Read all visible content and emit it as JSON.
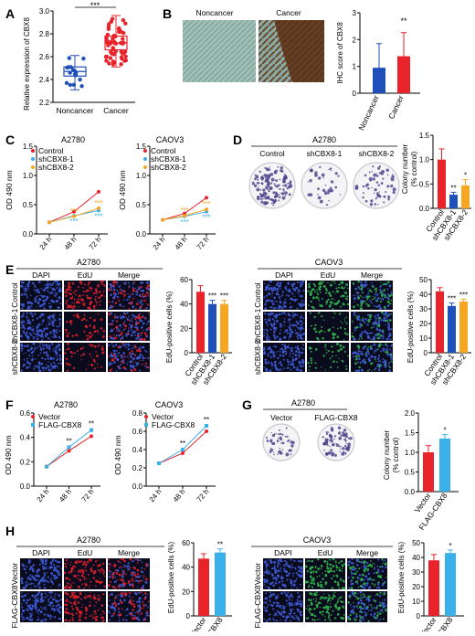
{
  "panel_labels": {
    "A": "A",
    "B": "B",
    "C": "C",
    "D": "D",
    "E": "E",
    "F": "F",
    "G": "G",
    "H": "H"
  },
  "panel_A": {
    "ylabel": "Relative expression of CBX8",
    "yticks": [
      "2.2",
      "2.4",
      "2.6",
      "2.8",
      "3.0"
    ],
    "groups": [
      "Noncancer",
      "Cancer"
    ],
    "sig": "***",
    "colors": {
      "noncancer": "#1f4fb8",
      "cancer": "#e8232a"
    }
  },
  "panel_B": {
    "img_labels": [
      "Noncancer",
      "Cancer"
    ],
    "ylabel": "IHC score of CBX8",
    "yticks": [
      "0",
      "1",
      "2",
      "3"
    ],
    "groups": [
      "Noncancer",
      "Cancer"
    ],
    "sig": "**"
  },
  "panel_C": {
    "title1": "A2780",
    "title2": "CAOV3",
    "ylabel": "OD 490 nm",
    "legend": [
      "Control",
      "shCBX8-1",
      "shCBX8-2"
    ],
    "xticks": [
      "24 h",
      "48 h",
      "72 h"
    ],
    "yticks1": [
      "0.0",
      "0.5",
      "1.0",
      "1.5"
    ],
    "yticks2": [
      "0.0",
      "0.5",
      "1.0",
      "1.5"
    ],
    "sig": "***"
  },
  "panel_D": {
    "title": "A2780",
    "img_labels": [
      "Control",
      "shCBX8-1",
      "shCBX8-2"
    ],
    "ylabel1": "Colony number",
    "ylabel2": "(% control)",
    "yticks": [
      "0.0",
      "0.5",
      "1.0",
      "1.5"
    ],
    "groups": [
      "Control",
      "shCBX8-1",
      "shCBX8-2"
    ],
    "sig": [
      "",
      "**",
      "*"
    ]
  },
  "panel_E": {
    "left": {
      "title": "A2780",
      "cols": [
        "DAPI",
        "EdU",
        "Merge"
      ],
      "rows": [
        "Control",
        "shCBX8-1",
        "shCBX8-2"
      ],
      "ylabel": "EdU-positive cells (%)",
      "yticks": [
        "0",
        "20",
        "40",
        "60"
      ],
      "groups": [
        "Control",
        "shCBX8-1",
        "shCBX8-2"
      ],
      "sig": [
        "",
        "***",
        "***"
      ]
    },
    "right": {
      "title": "CAOV3",
      "cols": [
        "DAPI",
        "EdU",
        "Merge"
      ],
      "rows": [
        "Control",
        "shCBX8-1",
        "shCBX8-2"
      ],
      "ylabel": "EdU-positive cells (%)",
      "yticks": [
        "0",
        "10",
        "20",
        "30",
        "40",
        "50"
      ],
      "groups": [
        "Control",
        "shCBX8-1",
        "shCBX8-2"
      ],
      "sig": [
        "",
        "***",
        "***"
      ]
    }
  },
  "panel_F": {
    "title1": "A2780",
    "title2": "CAOV3",
    "ylabel": "OD 490 nm",
    "legend": [
      "Vector",
      "FLAG-CBX8"
    ],
    "xticks": [
      "24 h",
      "48 h",
      "72 h"
    ],
    "yticks1": [
      "0.0",
      "0.2",
      "0.4",
      "0.6"
    ],
    "yticks2": [
      "0.0",
      "0.2",
      "0.4",
      "0.6",
      "0.8"
    ],
    "sig": "**"
  },
  "panel_G": {
    "title": "A2780",
    "img_labels": [
      "Vector",
      "FLAG-CBX8"
    ],
    "ylabel1": "Colony number",
    "ylabel2": "(% control)",
    "yticks": [
      "0.0",
      "0.5",
      "1.0",
      "1.5",
      "2.0"
    ],
    "groups": [
      "Vector",
      "FLAG-CBX8"
    ],
    "sig": "*"
  },
  "panel_H": {
    "left": {
      "title": "A2780",
      "cols": [
        "DAPI",
        "EdU",
        "Merge"
      ],
      "rows": [
        "Vector",
        "FLAG-CBX8"
      ],
      "ylabel": "EdU-positive cells (%)",
      "yticks": [
        "0",
        "20",
        "40",
        "60"
      ],
      "groups": [
        "Vector",
        "FLAG-CBX8"
      ],
      "sig": "**"
    },
    "right": {
      "title": "CAOV3",
      "cols": [
        "DAPI",
        "EdU",
        "Merge"
      ],
      "rows": [
        "Vector",
        "FLAG-CBX8"
      ],
      "ylabel": "EdU-positive cells (%)",
      "yticks": [
        "0",
        "10",
        "20",
        "30",
        "40",
        "50"
      ],
      "groups": [
        "Vector",
        "FLAG-CBX8"
      ],
      "sig": "*"
    }
  },
  "chart_data": [
    {
      "type": "box",
      "title": "",
      "ylabel": "Relative expression of CBX8",
      "categories": [
        "Noncancer",
        "Cancer"
      ],
      "ylim": [
        2.2,
        3.0
      ],
      "series": [
        {
          "values": [
            2.47,
            2.72
          ]
        }
      ]
    },
    {
      "type": "bar",
      "ylabel": "IHC score of CBX8",
      "categories": [
        "Noncancer",
        "Cancer"
      ],
      "ylim": [
        0,
        3
      ],
      "values": [
        0.95,
        1.38
      ],
      "errors": [
        0.9,
        0.88
      ]
    },
    {
      "type": "line",
      "title": "A2780",
      "ylabel": "OD 490 nm",
      "x": [
        "24 h",
        "48 h",
        "72 h"
      ],
      "ylim": [
        0,
        1.5
      ],
      "series": [
        {
          "name": "Control",
          "values": [
            0.2,
            0.38,
            0.72
          ]
        },
        {
          "name": "shCBX8-1",
          "values": [
            0.2,
            0.31,
            0.4
          ]
        },
        {
          "name": "shCBX8-2",
          "values": [
            0.2,
            0.3,
            0.44
          ]
        }
      ]
    },
    {
      "type": "line",
      "title": "CAOV3",
      "ylabel": "OD 490 nm",
      "x": [
        "24 h",
        "48 h",
        "72 h"
      ],
      "ylim": [
        0,
        1.5
      ],
      "series": [
        {
          "name": "Control",
          "values": [
            0.24,
            0.35,
            0.62
          ]
        },
        {
          "name": "shCBX8-1",
          "values": [
            0.24,
            0.3,
            0.38
          ]
        },
        {
          "name": "shCBX8-2",
          "values": [
            0.24,
            0.31,
            0.42
          ]
        }
      ]
    },
    {
      "type": "bar",
      "ylabel": "Colony number (% control)",
      "categories": [
        "Control",
        "shCBX8-1",
        "shCBX8-2"
      ],
      "ylim": [
        0,
        1.5
      ],
      "values": [
        1.0,
        0.28,
        0.47
      ],
      "errors": [
        0.22,
        0.05,
        0.12
      ]
    },
    {
      "type": "bar",
      "ylabel": "EdU-positive cells (%)",
      "categories": [
        "Control",
        "shCBX8-1",
        "shCBX8-2"
      ],
      "ylim": [
        0,
        60
      ],
      "values": [
        50,
        40,
        40
      ],
      "errors": [
        5,
        3,
        3
      ]
    },
    {
      "type": "bar",
      "ylabel": "EdU-positive cells (%)",
      "categories": [
        "Control",
        "shCBX8-1",
        "shCBX8-2"
      ],
      "ylim": [
        0,
        50
      ],
      "values": [
        42,
        32,
        35
      ],
      "errors": [
        2.5,
        2,
        1.5
      ]
    },
    {
      "type": "line",
      "title": "A2780",
      "ylabel": "OD 490 nm",
      "x": [
        "24 h",
        "48 h",
        "72 h"
      ],
      "ylim": [
        0,
        0.6
      ],
      "series": [
        {
          "name": "Vector",
          "values": [
            0.16,
            0.29,
            0.41
          ]
        },
        {
          "name": "FLAG-CBX8",
          "values": [
            0.16,
            0.32,
            0.46
          ]
        }
      ]
    },
    {
      "type": "line",
      "title": "CAOV3",
      "ylabel": "OD 490 nm",
      "x": [
        "24 h",
        "48 h",
        "72 h"
      ],
      "ylim": [
        0,
        0.8
      ],
      "series": [
        {
          "name": "Vector",
          "values": [
            0.25,
            0.36,
            0.6
          ]
        },
        {
          "name": "FLAG-CBX8",
          "values": [
            0.25,
            0.4,
            0.66
          ]
        }
      ]
    },
    {
      "type": "bar",
      "ylabel": "Colony number (% control)",
      "categories": [
        "Vector",
        "FLAG-CBX8"
      ],
      "ylim": [
        0,
        2.0
      ],
      "values": [
        1.0,
        1.35
      ],
      "errors": [
        0.17,
        0.1
      ]
    },
    {
      "type": "bar",
      "ylabel": "EdU-positive cells (%)",
      "categories": [
        "Vector",
        "FLAG-CBX8"
      ],
      "ylim": [
        0,
        60
      ],
      "values": [
        47,
        52
      ],
      "errors": [
        4,
        3
      ]
    },
    {
      "type": "bar",
      "ylabel": "EdU-positive cells (%)",
      "categories": [
        "Vector",
        "FLAG-CBX8"
      ],
      "ylim": [
        0,
        50
      ],
      "values": [
        38,
        43
      ],
      "errors": [
        4,
        2
      ]
    }
  ],
  "colors": {
    "red": "#e8232a",
    "blue": "#1f4fb8",
    "lightblue": "#3ab0e8",
    "orange": "#f5a623",
    "mic_bg": "#0b0b1e",
    "nuc_blue": "#3d5bd6",
    "edu_red": "#e0202a",
    "edu_green": "#2fb34a"
  }
}
